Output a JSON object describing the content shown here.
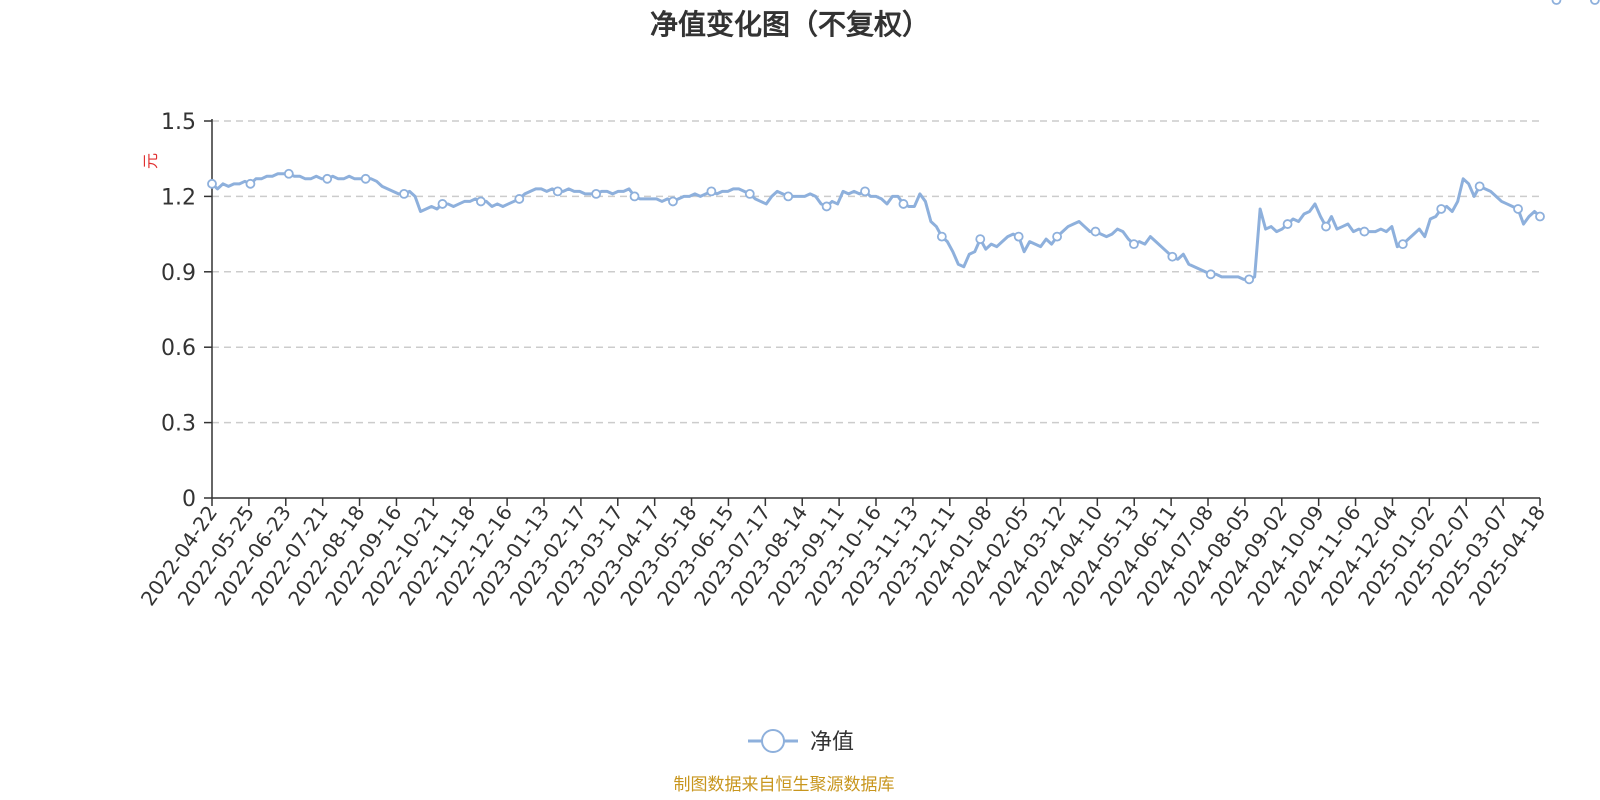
{
  "title": "净值变化图（不复权）",
  "source_note": "制图数据来自恒生聚源数据库",
  "colors": {
    "line": "#8eb0dc",
    "grid": "#cccccc",
    "axis": "#333333",
    "unit": "#e03030",
    "source": "#c8961e"
  },
  "chart_data": {
    "type": "line",
    "title": "净值变化图（不复权）",
    "ylabel": "元",
    "ylim": [
      0,
      1.5
    ],
    "yticks": [
      "0",
      "0.3",
      "0.6",
      "0.9",
      "1.2",
      "1.5"
    ],
    "grid": true,
    "legend_position": "bottom-center",
    "x_tick_labels": [
      "2022-04-22",
      "2022-05-25",
      "2022-06-23",
      "2022-07-21",
      "2022-08-18",
      "2022-09-16",
      "2022-10-21",
      "2022-11-18",
      "2022-12-16",
      "2023-01-13",
      "2023-02-17",
      "2023-03-17",
      "2023-04-17",
      "2023-05-18",
      "2023-06-15",
      "2023-07-17",
      "2023-08-14",
      "2023-09-11",
      "2023-10-16",
      "2023-11-13",
      "2023-12-11",
      "2024-01-08",
      "2024-02-05",
      "2024-03-12",
      "2024-04-10",
      "2024-05-13",
      "2024-06-11",
      "2024-07-08",
      "2024-08-05",
      "2024-09-02",
      "2024-10-09",
      "2024-11-06",
      "2024-12-04",
      "2025-01-02",
      "2025-02-07",
      "2025-03-07",
      "2025-04-18"
    ],
    "series": [
      {
        "name": "净值",
        "values": [
          1.25,
          1.23,
          1.25,
          1.24,
          1.25,
          1.25,
          1.26,
          1.25,
          1.27,
          1.27,
          1.28,
          1.28,
          1.29,
          1.29,
          1.29,
          1.28,
          1.28,
          1.27,
          1.27,
          1.28,
          1.27,
          1.27,
          1.28,
          1.27,
          1.27,
          1.28,
          1.27,
          1.27,
          1.27,
          1.27,
          1.26,
          1.24,
          1.23,
          1.22,
          1.21,
          1.21,
          1.22,
          1.2,
          1.14,
          1.15,
          1.16,
          1.15,
          1.17,
          1.17,
          1.16,
          1.17,
          1.18,
          1.18,
          1.19,
          1.18,
          1.18,
          1.16,
          1.17,
          1.16,
          1.17,
          1.18,
          1.19,
          1.21,
          1.22,
          1.23,
          1.23,
          1.22,
          1.23,
          1.22,
          1.22,
          1.23,
          1.22,
          1.22,
          1.21,
          1.21,
          1.21,
          1.22,
          1.22,
          1.21,
          1.22,
          1.22,
          1.23,
          1.2,
          1.19,
          1.19,
          1.19,
          1.19,
          1.18,
          1.19,
          1.18,
          1.19,
          1.2,
          1.2,
          1.21,
          1.2,
          1.21,
          1.22,
          1.21,
          1.22,
          1.22,
          1.23,
          1.23,
          1.22,
          1.21,
          1.19,
          1.18,
          1.17,
          1.2,
          1.22,
          1.21,
          1.2,
          1.2,
          1.2,
          1.2,
          1.21,
          1.2,
          1.17,
          1.16,
          1.18,
          1.17,
          1.22,
          1.21,
          1.22,
          1.21,
          1.22,
          1.2,
          1.2,
          1.19,
          1.17,
          1.2,
          1.2,
          1.17,
          1.16,
          1.16,
          1.21,
          1.18,
          1.1,
          1.08,
          1.04,
          1.02,
          0.98,
          0.93,
          0.92,
          0.97,
          0.98,
          1.03,
          0.99,
          1.01,
          1.0,
          1.02,
          1.04,
          1.05,
          1.04,
          0.98,
          1.02,
          1.01,
          1.0,
          1.03,
          1.01,
          1.04,
          1.06,
          1.08,
          1.09,
          1.1,
          1.08,
          1.06,
          1.06,
          1.05,
          1.04,
          1.05,
          1.07,
          1.06,
          1.03,
          1.01,
          1.02,
          1.01,
          1.04,
          1.02,
          1.0,
          0.98,
          0.96,
          0.95,
          0.97,
          0.93,
          0.92,
          0.91,
          0.9,
          0.89,
          0.89,
          0.88,
          0.88,
          0.88,
          0.88,
          0.87,
          0.87,
          0.88,
          1.15,
          1.07,
          1.08,
          1.06,
          1.07,
          1.09,
          1.11,
          1.1,
          1.13,
          1.14,
          1.17,
          1.12,
          1.08,
          1.12,
          1.07,
          1.08,
          1.09,
          1.06,
          1.07,
          1.06,
          1.06,
          1.06,
          1.07,
          1.06,
          1.08,
          1.0,
          1.01,
          1.03,
          1.05,
          1.07,
          1.04,
          1.11,
          1.12,
          1.15,
          1.16,
          1.14,
          1.18,
          1.27,
          1.25,
          1.2,
          1.24,
          1.23,
          1.22,
          1.2,
          1.18,
          1.17,
          1.16,
          1.15,
          1.09,
          1.12,
          1.14,
          1.12
        ]
      }
    ],
    "marker_indices": [
      0,
      7,
      14,
      21,
      28,
      35,
      42,
      49,
      56,
      63,
      70,
      77,
      84,
      91,
      98,
      105,
      112,
      119,
      126,
      133,
      140,
      147,
      154,
      161,
      168,
      175,
      182,
      189,
      196,
      203,
      210,
      217,
      224,
      231,
      238,
      245,
      252
    ]
  }
}
